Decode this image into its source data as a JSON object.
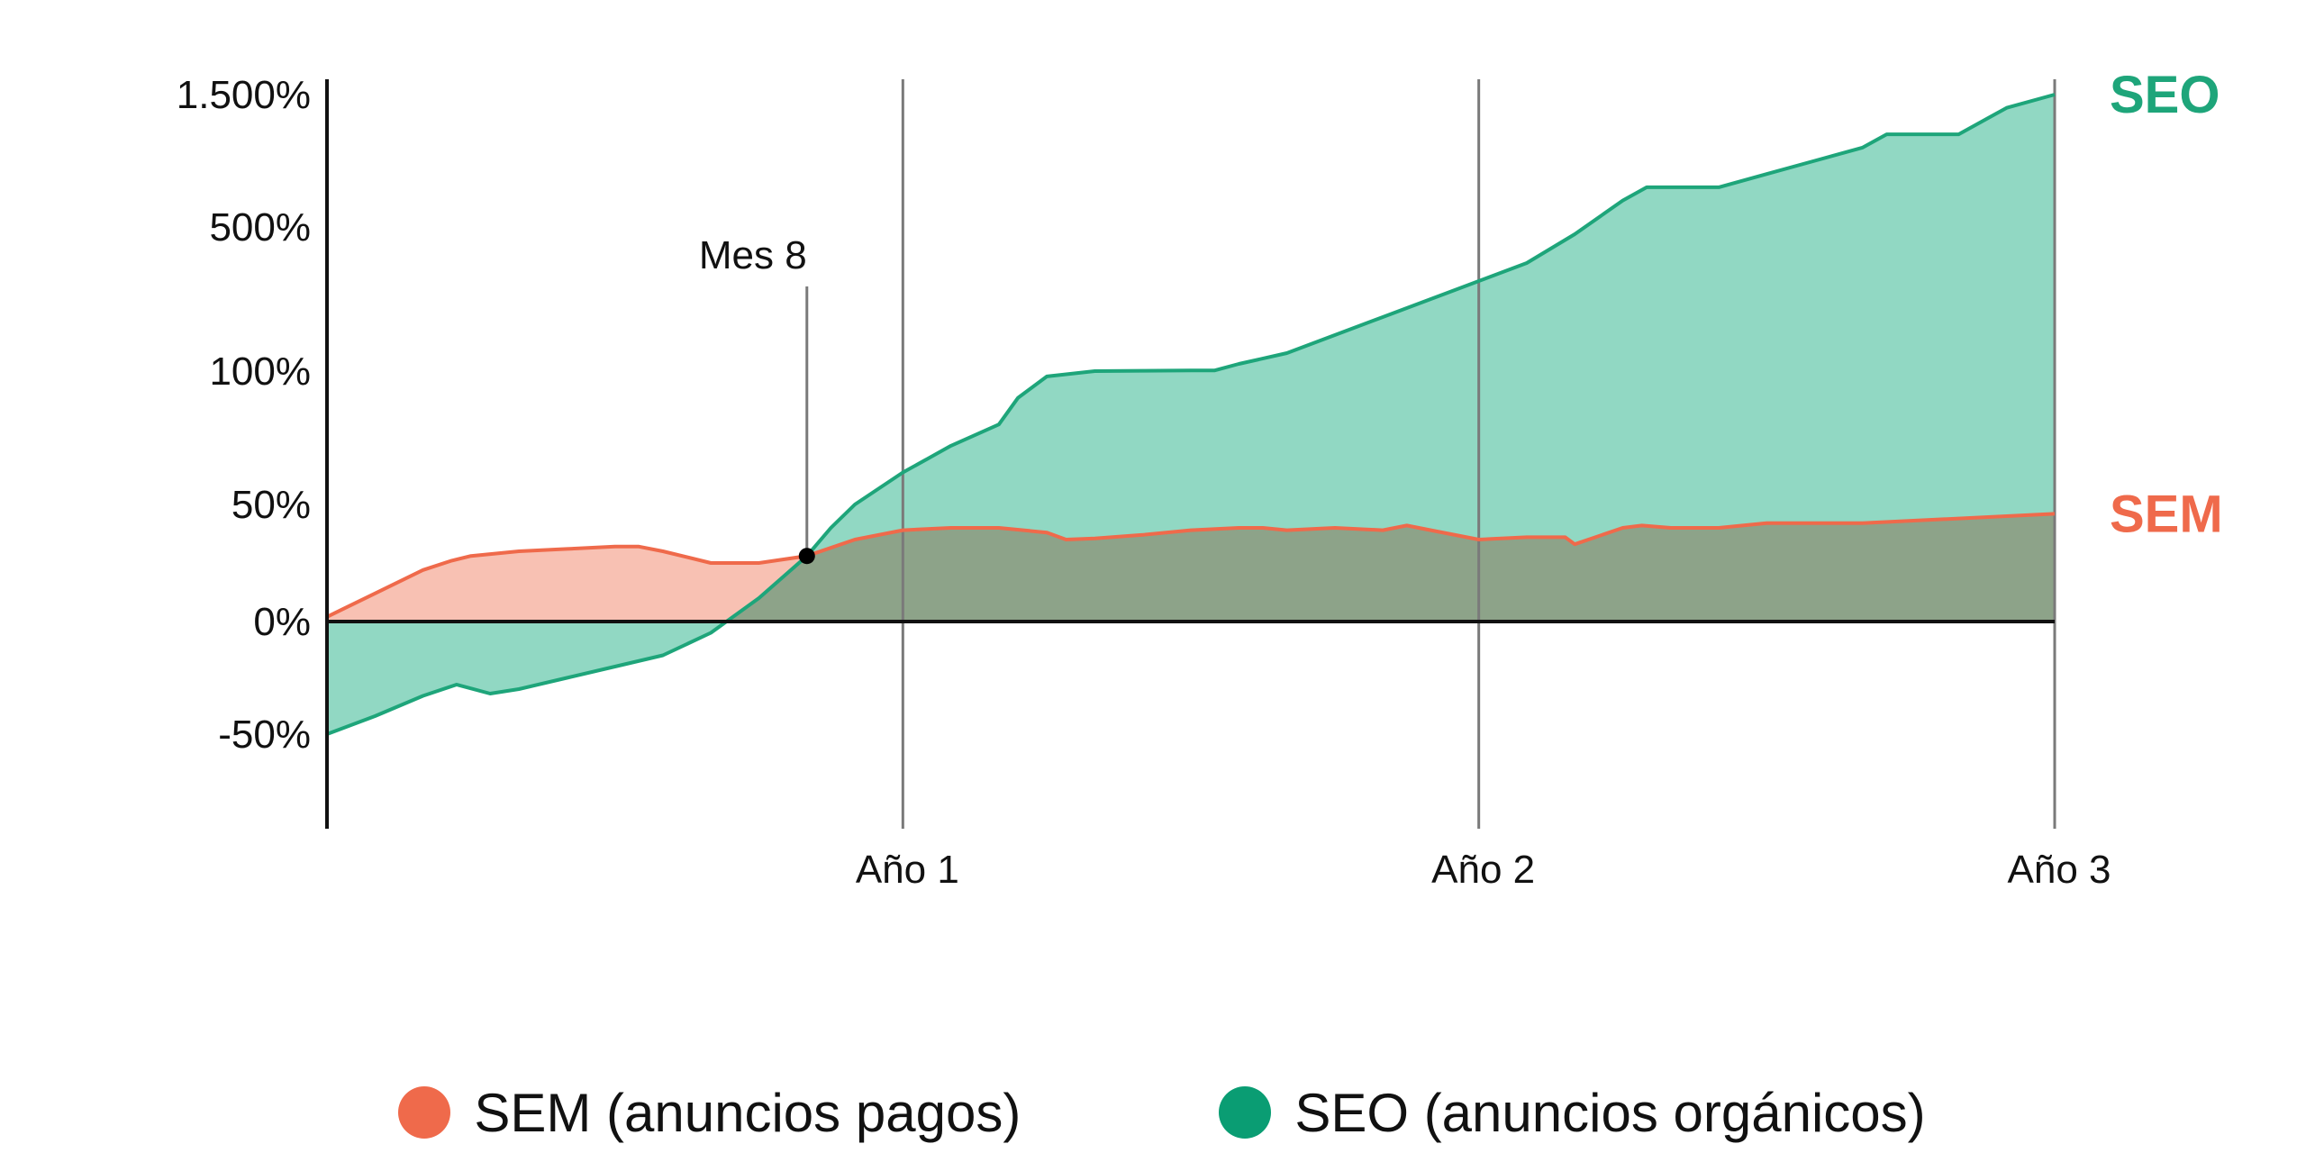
{
  "chart_data": {
    "type": "area",
    "title": "",
    "xlabel": "",
    "ylabel": "",
    "x_unit": "months",
    "x_range": [
      0,
      36
    ],
    "x_ticks": [
      {
        "value": 12,
        "label": "Año 1"
      },
      {
        "value": 24,
        "label": "Año 2"
      },
      {
        "value": 36,
        "label": "Año 3"
      }
    ],
    "y_scale": "non-linear (labeled ticks at uneven spacing)",
    "y_ticks": [
      {
        "value": -50,
        "label": "-50%"
      },
      {
        "value": 0,
        "label": "0%"
      },
      {
        "value": 50,
        "label": "50%"
      },
      {
        "value": 100,
        "label": "100%"
      },
      {
        "value": 500,
        "label": "500%"
      },
      {
        "value": 1500,
        "label": "1.500%"
      }
    ],
    "grid": "vertical lines at each year",
    "annotation": {
      "label": "Mes 8",
      "x": 10,
      "y": 28
    },
    "series": [
      {
        "name": "SEM",
        "end_label": "SEM",
        "color": "#ef6a4b",
        "fill": "#f8c1b3",
        "points": [
          [
            0,
            2
          ],
          [
            1,
            12
          ],
          [
            2,
            22
          ],
          [
            2.6,
            26
          ],
          [
            3,
            28
          ],
          [
            4,
            30
          ],
          [
            5,
            31
          ],
          [
            6,
            32
          ],
          [
            6.5,
            32
          ],
          [
            7,
            30
          ],
          [
            8,
            25
          ],
          [
            9,
            25
          ],
          [
            10,
            28
          ],
          [
            11,
            35
          ],
          [
            12,
            39
          ],
          [
            13,
            40
          ],
          [
            14,
            40
          ],
          [
            15,
            38
          ],
          [
            15.4,
            35
          ],
          [
            16,
            35.5
          ],
          [
            17,
            37
          ],
          [
            18,
            39
          ],
          [
            19,
            40
          ],
          [
            19.5,
            40
          ],
          [
            20,
            39
          ],
          [
            21,
            40
          ],
          [
            22,
            39
          ],
          [
            22.5,
            41
          ],
          [
            23,
            39
          ],
          [
            24,
            35
          ],
          [
            25,
            36
          ],
          [
            25.8,
            36
          ],
          [
            26,
            33
          ],
          [
            27,
            40
          ],
          [
            27.4,
            41
          ],
          [
            28,
            40
          ],
          [
            29,
            40
          ],
          [
            30,
            42
          ],
          [
            32,
            42
          ],
          [
            34,
            44
          ],
          [
            36,
            46
          ]
        ]
      },
      {
        "name": "SEO",
        "end_label": "SEO",
        "color": "#1ea57a",
        "fill": "#91d8c3",
        "points": [
          [
            0,
            -50
          ],
          [
            1,
            -42
          ],
          [
            2,
            -33
          ],
          [
            2.7,
            -28
          ],
          [
            3.4,
            -32
          ],
          [
            4,
            -30
          ],
          [
            5,
            -25
          ],
          [
            6,
            -20
          ],
          [
            7,
            -15
          ],
          [
            8,
            -5
          ],
          [
            9,
            10
          ],
          [
            10,
            28
          ],
          [
            10.5,
            40
          ],
          [
            11,
            50
          ],
          [
            12,
            62
          ],
          [
            12.5,
            67
          ],
          [
            13,
            72
          ],
          [
            14,
            80
          ],
          [
            14.4,
            90
          ],
          [
            15,
            98
          ],
          [
            16,
            100
          ],
          [
            17,
            101
          ],
          [
            18,
            102
          ],
          [
            18.5,
            102
          ],
          [
            19,
            120
          ],
          [
            20,
            150
          ],
          [
            21,
            200
          ],
          [
            22,
            250
          ],
          [
            23,
            300
          ],
          [
            24,
            350
          ],
          [
            25,
            400
          ],
          [
            26,
            480
          ],
          [
            27,
            700
          ],
          [
            27.5,
            800
          ],
          [
            28,
            800
          ],
          [
            29,
            800
          ],
          [
            30,
            900
          ],
          [
            31,
            1000
          ],
          [
            32,
            1100
          ],
          [
            32.5,
            1200
          ],
          [
            33,
            1200
          ],
          [
            34,
            1200
          ],
          [
            35,
            1400
          ],
          [
            36,
            1500
          ]
        ]
      }
    ],
    "legend_position": "bottom",
    "legend": [
      {
        "label": "SEM (anuncios pagos)",
        "color": "#ef6a4b"
      },
      {
        "label": "SEO (anuncios orgánicos)",
        "color": "#0a9d73"
      }
    ]
  }
}
